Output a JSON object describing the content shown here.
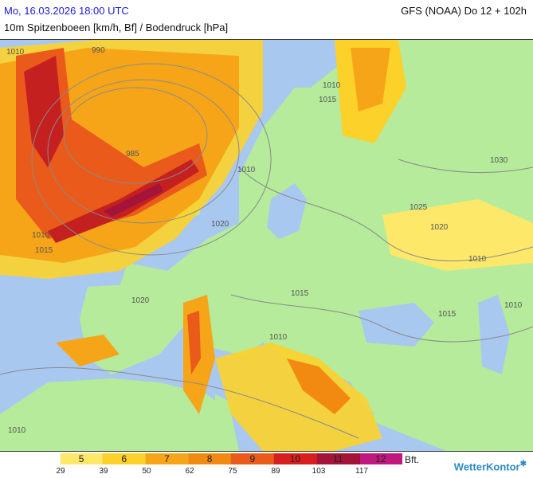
{
  "header": {
    "date": "Mo, 16.03.2026 18:00 UTC",
    "model": "GFS (NOAA) Do 12 + 102h",
    "subtitle": "10m Spitzenboeen [km/h, Bf] / Bodendruck [hPa]"
  },
  "isobar_labels": [
    "1010",
    "990",
    "985",
    "1010",
    "1015",
    "1010",
    "1030",
    "1020",
    "1025",
    "1020",
    "1010",
    "1010",
    "1015",
    "1020",
    "1015",
    "1010",
    "1010",
    "1015",
    "1010"
  ],
  "legend": {
    "bft_levels": [
      "",
      "5",
      "6",
      "7",
      "8",
      "9",
      "10",
      "11",
      "12"
    ],
    "colors": [
      "#ffffff",
      "#fde86a",
      "#fcd12a",
      "#f7a518",
      "#f28a12",
      "#ea5a1a",
      "#d81e1e",
      "#a3133a",
      "#c0187e"
    ],
    "unit": "Bft.",
    "kmh_ticks": [
      "29",
      "39",
      "50",
      "62",
      "75",
      "89",
      "103",
      "117"
    ]
  },
  "logo": "WetterKontor",
  "colors": {
    "land": "#b5eb9a",
    "sea": "#a9c8f0",
    "gust_light": "#fde86a",
    "gust_mid": "#f7a518",
    "gust_strong": "#e2401a",
    "gust_storm": "#a3133a"
  }
}
